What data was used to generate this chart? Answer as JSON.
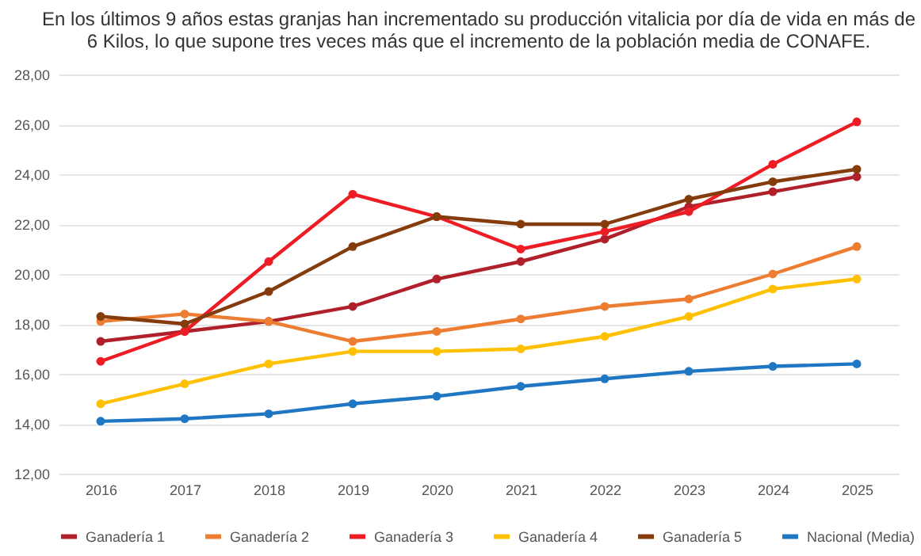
{
  "chart_data": {
    "type": "line",
    "title": "En los últimos 9 años estas granjas han incrementado su producción vitalicia por día de vida en más de\n6 Kilos, lo que supone tres veces más que el incremento de la población media de CONAFE.",
    "categories": [
      "2016",
      "2017",
      "2018",
      "2019",
      "2020",
      "2021",
      "2022",
      "2023",
      "2024",
      "2025"
    ],
    "series": [
      {
        "name": "Ganadería 1",
        "color": "#b0202a",
        "values": [
          17.3,
          17.7,
          18.1,
          18.7,
          19.8,
          20.5,
          21.4,
          22.7,
          23.3,
          23.9
        ]
      },
      {
        "name": "Ganadería 2",
        "color": "#ed7d31",
        "values": [
          18.1,
          18.4,
          18.1,
          17.3,
          17.7,
          18.2,
          18.7,
          19.0,
          20.0,
          21.1
        ]
      },
      {
        "name": "Ganadería 3",
        "color": "#ee1c25",
        "values": [
          16.5,
          17.7,
          20.5,
          23.2,
          22.3,
          21.0,
          21.7,
          22.5,
          24.4,
          26.1
        ]
      },
      {
        "name": "Ganadería 4",
        "color": "#ffc000",
        "values": [
          14.8,
          15.6,
          16.4,
          16.9,
          16.9,
          17.0,
          17.5,
          18.3,
          19.4,
          19.8
        ]
      },
      {
        "name": "Ganadería 5",
        "color": "#843c0c",
        "values": [
          18.3,
          18.0,
          19.3,
          21.1,
          22.3,
          22.0,
          22.0,
          23.0,
          23.7,
          24.2
        ]
      },
      {
        "name": "Nacional (Media)",
        "color": "#1f77c4",
        "values": [
          14.1,
          14.2,
          14.4,
          14.8,
          15.1,
          15.5,
          15.8,
          16.1,
          16.3,
          16.4
        ]
      }
    ],
    "ylim": [
      12,
      28
    ],
    "yticks": [
      {
        "value": 12,
        "label": "12,00"
      },
      {
        "value": 14,
        "label": "14,00"
      },
      {
        "value": 16,
        "label": "16,00"
      },
      {
        "value": 18,
        "label": "18,00"
      },
      {
        "value": 20,
        "label": "20,00"
      },
      {
        "value": 22,
        "label": "22,00"
      },
      {
        "value": 24,
        "label": "24,00"
      },
      {
        "value": 26,
        "label": "26,00"
      },
      {
        "value": 28,
        "label": "28,00"
      }
    ],
    "grid": "y",
    "legend": "bottom",
    "marker": "circle",
    "line_style": "solid"
  }
}
